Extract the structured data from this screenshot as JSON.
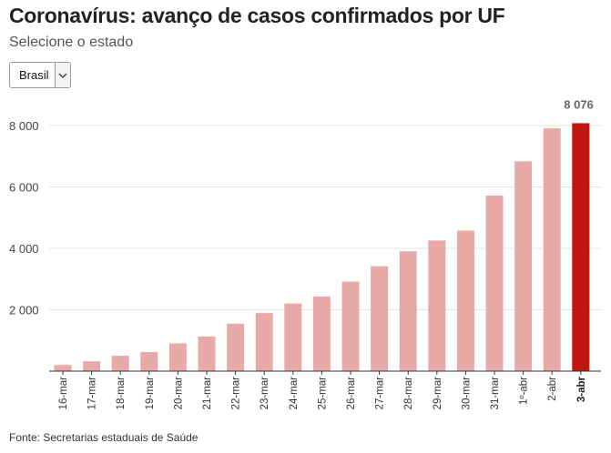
{
  "header": {
    "title": "Coronavírus: avanço de casos confirmados por UF",
    "subtitle": "Selecione o estado"
  },
  "state_select": {
    "value": "Brasil",
    "icon": "chevron-down-icon"
  },
  "source": "Fonte: Secretarias estaduais de Saúde",
  "colors": {
    "bar": "#e8aaa8",
    "highlight": "#c0160f",
    "grid": "#e4e4e4"
  },
  "chart_data": {
    "type": "bar",
    "title": "Coronavírus: avanço de casos confirmados por UF",
    "xlabel": "",
    "ylabel": "",
    "ylim": [
      0,
      8000
    ],
    "yticks": [
      2000,
      4000,
      6000,
      8000
    ],
    "ytick_labels": [
      "2 000",
      "4 000",
      "6 000",
      "8 000"
    ],
    "categories": [
      "16-mar",
      "17-mar",
      "18-mar",
      "19-mar",
      "20-mar",
      "21-mar",
      "22-mar",
      "23-mar",
      "24-mar",
      "25-mar",
      "26-mar",
      "27-mar",
      "28-mar",
      "29-mar",
      "30-mar",
      "31-mar",
      "1º-abr",
      "2-abr",
      "3-abr"
    ],
    "values": [
      200,
      321,
      499,
      621,
      904,
      1128,
      1546,
      1891,
      2201,
      2433,
      2915,
      3417,
      3904,
      4256,
      4579,
      5717,
      6836,
      7910,
      8076
    ],
    "highlight_index": 18,
    "highlight_label": "8 076",
    "grid": true,
    "legend": "none"
  }
}
